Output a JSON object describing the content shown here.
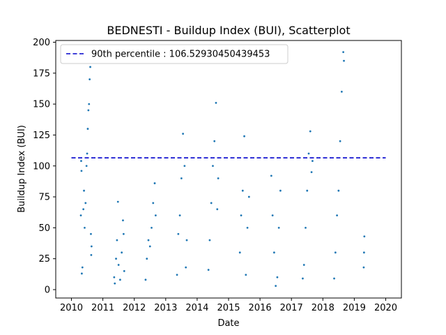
{
  "chart_data": {
    "type": "scatter",
    "title": "BEDNESTI - Buildup Index (BUI), Scatterplot",
    "xlabel": "Date",
    "ylabel": "Buildup Index (BUI)",
    "xlim": [
      2010,
      2020
    ],
    "ylim": [
      0,
      200
    ],
    "x_ticks": [
      "2010",
      "2011",
      "2012",
      "2013",
      "2014",
      "2015",
      "2016",
      "2017",
      "2018",
      "2019",
      "2020"
    ],
    "y_ticks": [
      "0",
      "25",
      "50",
      "75",
      "100",
      "125",
      "150",
      "175",
      "200"
    ],
    "grid": false,
    "legend_position": "top-left",
    "reference_line": {
      "label": "90th percentile : 106.52930450439453",
      "value": 106.52930450439453,
      "style": "dashed",
      "color": "#0000cc",
      "x_range": [
        2010,
        2020
      ]
    },
    "series": [
      {
        "color": "#1f77b4",
        "seasons": [
          {
            "start": 2010.3,
            "end": 2010.65,
            "points": [
              [
                2010.3,
                60
              ],
              [
                2010.31,
                104
              ],
              [
                2010.32,
                96
              ],
              [
                2010.33,
                13
              ],
              [
                2010.35,
                18
              ],
              [
                2010.38,
                65
              ],
              [
                2010.4,
                80
              ],
              [
                2010.42,
                50
              ],
              [
                2010.45,
                70
              ],
              [
                2010.48,
                100
              ],
              [
                2010.5,
                110
              ],
              [
                2010.52,
                130
              ],
              [
                2010.54,
                145
              ],
              [
                2010.56,
                150
              ],
              [
                2010.58,
                170
              ],
              [
                2010.6,
                180
              ],
              [
                2010.62,
                45
              ],
              [
                2010.63,
                28
              ],
              [
                2010.64,
                35
              ]
            ]
          },
          {
            "start": 2011.35,
            "end": 2011.7,
            "points": [
              [
                2011.36,
                10
              ],
              [
                2011.38,
                5
              ],
              [
                2011.42,
                25
              ],
              [
                2011.45,
                40
              ],
              [
                2011.48,
                71
              ],
              [
                2011.5,
                20
              ],
              [
                2011.55,
                8
              ],
              [
                2011.6,
                30
              ],
              [
                2011.64,
                56
              ],
              [
                2011.66,
                45
              ],
              [
                2011.68,
                15
              ]
            ]
          },
          {
            "start": 2012.35,
            "end": 2012.7,
            "points": [
              [
                2012.36,
                8
              ],
              [
                2012.4,
                25
              ],
              [
                2012.45,
                40
              ],
              [
                2012.5,
                35
              ],
              [
                2012.55,
                50
              ],
              [
                2012.6,
                70
              ],
              [
                2012.65,
                86
              ],
              [
                2012.68,
                60
              ]
            ]
          },
          {
            "start": 2013.35,
            "end": 2013.7,
            "points": [
              [
                2013.36,
                12
              ],
              [
                2013.4,
                45
              ],
              [
                2013.45,
                60
              ],
              [
                2013.5,
                90
              ],
              [
                2013.55,
                126
              ],
              [
                2013.6,
                100
              ],
              [
                2013.64,
                18
              ],
              [
                2013.67,
                40
              ]
            ]
          },
          {
            "start": 2014.35,
            "end": 2014.7,
            "points": [
              [
                2014.36,
                16
              ],
              [
                2014.4,
                40
              ],
              [
                2014.45,
                70
              ],
              [
                2014.5,
                100
              ],
              [
                2014.55,
                120
              ],
              [
                2014.6,
                151
              ],
              [
                2014.64,
                65
              ],
              [
                2014.67,
                90
              ]
            ]
          },
          {
            "start": 2015.35,
            "end": 2015.7,
            "points": [
              [
                2015.36,
                30
              ],
              [
                2015.4,
                60
              ],
              [
                2015.45,
                80
              ],
              [
                2015.5,
                124
              ],
              [
                2015.55,
                12
              ],
              [
                2015.6,
                50
              ],
              [
                2015.65,
                75
              ]
            ]
          },
          {
            "start": 2016.35,
            "end": 2016.7,
            "points": [
              [
                2016.36,
                92
              ],
              [
                2016.4,
                60
              ],
              [
                2016.45,
                30
              ],
              [
                2016.5,
                3
              ],
              [
                2016.55,
                10
              ],
              [
                2016.6,
                50
              ],
              [
                2016.65,
                80
              ]
            ]
          },
          {
            "start": 2017.35,
            "end": 2017.7,
            "points": [
              [
                2017.36,
                9
              ],
              [
                2017.4,
                20
              ],
              [
                2017.45,
                50
              ],
              [
                2017.5,
                80
              ],
              [
                2017.55,
                110
              ],
              [
                2017.6,
                128
              ],
              [
                2017.64,
                95
              ],
              [
                2017.67,
                104
              ]
            ]
          },
          {
            "start": 2018.35,
            "end": 2018.7,
            "points": [
              [
                2018.36,
                9
              ],
              [
                2018.4,
                30
              ],
              [
                2018.45,
                60
              ],
              [
                2018.5,
                80
              ],
              [
                2018.55,
                120
              ],
              [
                2018.6,
                160
              ],
              [
                2018.65,
                192
              ],
              [
                2018.67,
                185
              ]
            ]
          },
          {
            "start": 2019.3,
            "end": 2019.32,
            "points": [
              [
                2019.3,
                18
              ],
              [
                2019.31,
                30
              ],
              [
                2019.32,
                43
              ]
            ]
          }
        ]
      }
    ]
  }
}
